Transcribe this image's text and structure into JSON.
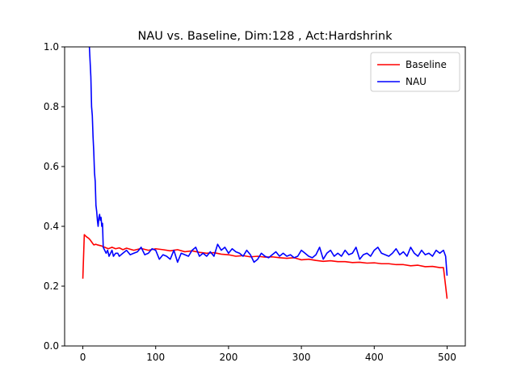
{
  "chart_data": {
    "type": "line",
    "title": "NAU vs. Baseline, Dim:128 , Act:Hardshrink",
    "xlabel": "",
    "ylabel": "",
    "xlim": [
      -25,
      525
    ],
    "ylim": [
      0.0,
      1.0
    ],
    "xticks": [
      0,
      100,
      200,
      300,
      400,
      500
    ],
    "yticks": [
      0.0,
      0.2,
      0.4,
      0.6,
      0.8,
      1.0
    ],
    "xtick_labels": [
      "0",
      "100",
      "200",
      "300",
      "400",
      "500"
    ],
    "ytick_labels": [
      "0.0",
      "0.2",
      "0.4",
      "0.6",
      "0.8",
      "1.0"
    ],
    "grid": false,
    "legend_position": "top-right",
    "series": [
      {
        "name": "Baseline",
        "color": "#ff0000",
        "x": [
          0,
          2,
          5,
          8,
          10,
          12,
          15,
          18,
          20,
          25,
          30,
          35,
          40,
          45,
          50,
          55,
          60,
          70,
          80,
          90,
          100,
          110,
          120,
          130,
          140,
          150,
          160,
          170,
          180,
          190,
          200,
          210,
          220,
          230,
          240,
          250,
          260,
          270,
          280,
          290,
          300,
          310,
          320,
          330,
          340,
          350,
          360,
          370,
          380,
          390,
          400,
          410,
          420,
          430,
          440,
          450,
          460,
          470,
          480,
          490,
          495,
          498,
          500
        ],
        "y": [
          0.225,
          0.372,
          0.365,
          0.36,
          0.355,
          0.348,
          0.338,
          0.34,
          0.338,
          0.335,
          0.33,
          0.325,
          0.33,
          0.325,
          0.328,
          0.322,
          0.327,
          0.32,
          0.326,
          0.32,
          0.325,
          0.322,
          0.318,
          0.322,
          0.315,
          0.318,
          0.313,
          0.31,
          0.312,
          0.307,
          0.305,
          0.3,
          0.302,
          0.298,
          0.3,
          0.297,
          0.298,
          0.295,
          0.293,
          0.295,
          0.288,
          0.29,
          0.286,
          0.283,
          0.285,
          0.282,
          0.282,
          0.279,
          0.28,
          0.277,
          0.278,
          0.275,
          0.275,
          0.272,
          0.272,
          0.268,
          0.27,
          0.265,
          0.266,
          0.262,
          0.262,
          0.2,
          0.158
        ]
      },
      {
        "name": "NAU",
        "color": "#0000ff",
        "x": [
          9,
          10,
          11,
          12,
          13,
          14,
          15,
          16,
          17,
          18,
          19,
          20,
          21,
          22,
          23,
          24,
          25,
          26,
          27,
          28,
          30,
          32,
          34,
          36,
          38,
          40,
          42,
          45,
          48,
          50,
          55,
          60,
          65,
          70,
          75,
          80,
          85,
          90,
          95,
          100,
          105,
          110,
          115,
          120,
          125,
          130,
          135,
          140,
          145,
          150,
          155,
          160,
          165,
          170,
          175,
          180,
          185,
          190,
          195,
          200,
          205,
          210,
          215,
          220,
          225,
          230,
          235,
          240,
          245,
          250,
          255,
          260,
          265,
          270,
          275,
          280,
          285,
          290,
          295,
          300,
          305,
          310,
          315,
          320,
          325,
          330,
          335,
          340,
          345,
          350,
          355,
          360,
          365,
          370,
          375,
          380,
          385,
          390,
          395,
          400,
          405,
          410,
          415,
          420,
          425,
          430,
          435,
          440,
          445,
          450,
          455,
          460,
          465,
          470,
          475,
          480,
          485,
          490,
          495,
          498,
          500
        ],
        "y": [
          1.0,
          0.95,
          0.9,
          0.8,
          0.77,
          0.7,
          0.65,
          0.58,
          0.55,
          0.47,
          0.45,
          0.42,
          0.4,
          0.43,
          0.44,
          0.42,
          0.43,
          0.4,
          0.41,
          0.33,
          0.32,
          0.31,
          0.32,
          0.3,
          0.31,
          0.32,
          0.3,
          0.31,
          0.31,
          0.3,
          0.31,
          0.32,
          0.305,
          0.31,
          0.315,
          0.33,
          0.305,
          0.31,
          0.325,
          0.32,
          0.29,
          0.305,
          0.3,
          0.29,
          0.32,
          0.28,
          0.31,
          0.305,
          0.3,
          0.32,
          0.33,
          0.3,
          0.31,
          0.3,
          0.315,
          0.3,
          0.34,
          0.32,
          0.33,
          0.31,
          0.325,
          0.315,
          0.31,
          0.3,
          0.32,
          0.305,
          0.28,
          0.29,
          0.31,
          0.3,
          0.295,
          0.305,
          0.315,
          0.3,
          0.31,
          0.3,
          0.305,
          0.295,
          0.3,
          0.32,
          0.31,
          0.3,
          0.295,
          0.305,
          0.33,
          0.29,
          0.31,
          0.32,
          0.3,
          0.31,
          0.3,
          0.32,
          0.305,
          0.31,
          0.33,
          0.29,
          0.305,
          0.31,
          0.3,
          0.32,
          0.33,
          0.31,
          0.305,
          0.3,
          0.31,
          0.325,
          0.305,
          0.315,
          0.3,
          0.33,
          0.31,
          0.3,
          0.32,
          0.305,
          0.31,
          0.3,
          0.32,
          0.31,
          0.32,
          0.3,
          0.235
        ]
      }
    ]
  }
}
